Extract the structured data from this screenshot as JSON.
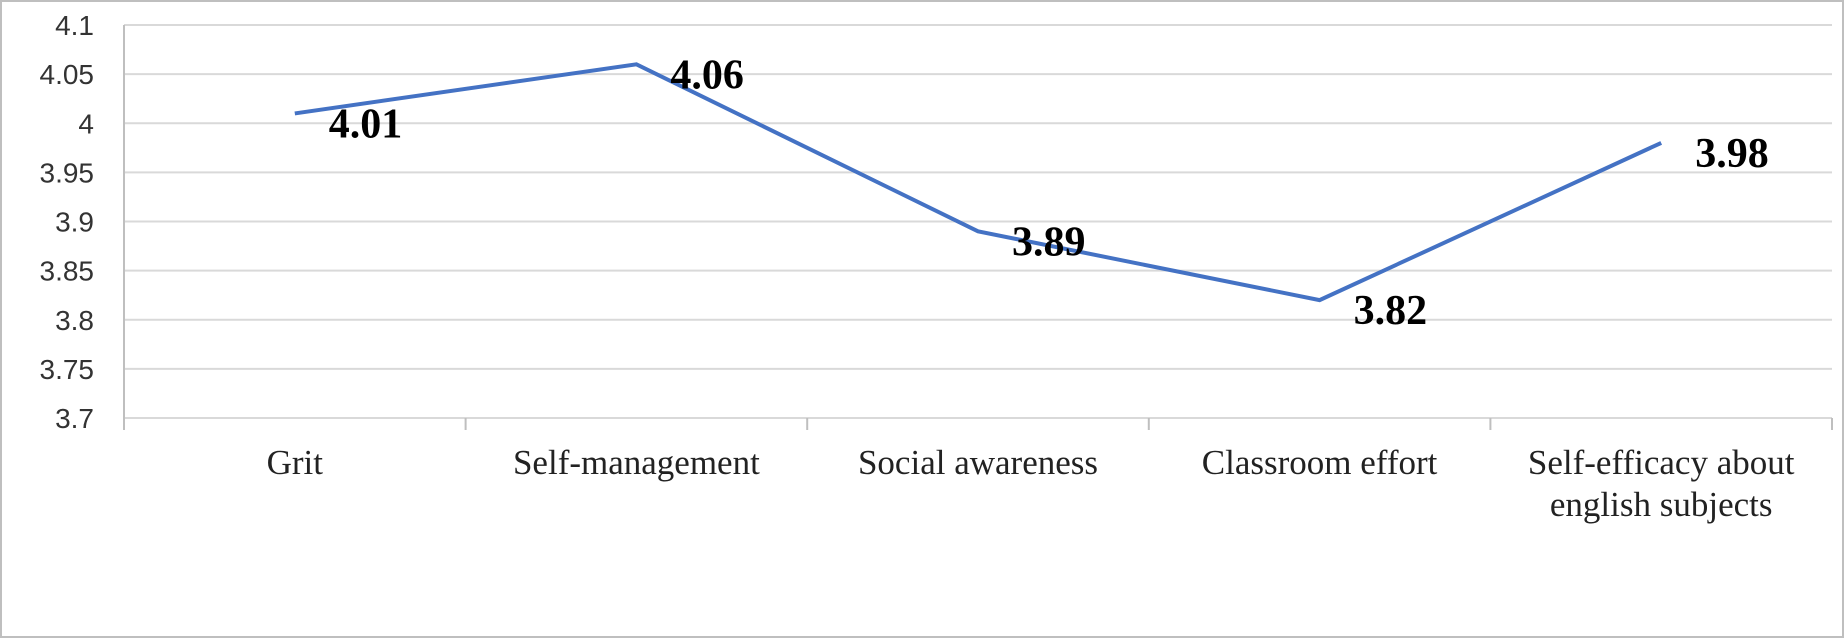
{
  "chart_data": {
    "type": "line",
    "title": "",
    "xlabel": "",
    "ylabel": "",
    "categories": [
      [
        "Grit"
      ],
      [
        "Self-management"
      ],
      [
        "Social awareness"
      ],
      [
        "Classroom effort"
      ],
      [
        "Self-efficacy about",
        "english subjects"
      ]
    ],
    "series": [
      {
        "values": [
          4.01,
          4.06,
          3.89,
          3.82,
          3.98
        ],
        "data_labels": [
          "4.01",
          "4.06",
          "3.89",
          "3.82",
          "3.98"
        ],
        "color": "#4472C4"
      }
    ],
    "ylim": [
      3.7,
      4.1
    ],
    "yticks": [
      3.7,
      3.75,
      3.8,
      3.85,
      3.9,
      3.95,
      4,
      4.05,
      4.1
    ],
    "ytick_labels": [
      "3.7",
      "3.75",
      "3.8",
      "3.85",
      "3.9",
      "3.95",
      "4",
      "4.05",
      "4.1"
    ],
    "grid": true,
    "legend": "none",
    "colors": {
      "grid": "#D9D9D9",
      "axis": "#BFBFBF",
      "border": "#BFBFBF"
    }
  }
}
